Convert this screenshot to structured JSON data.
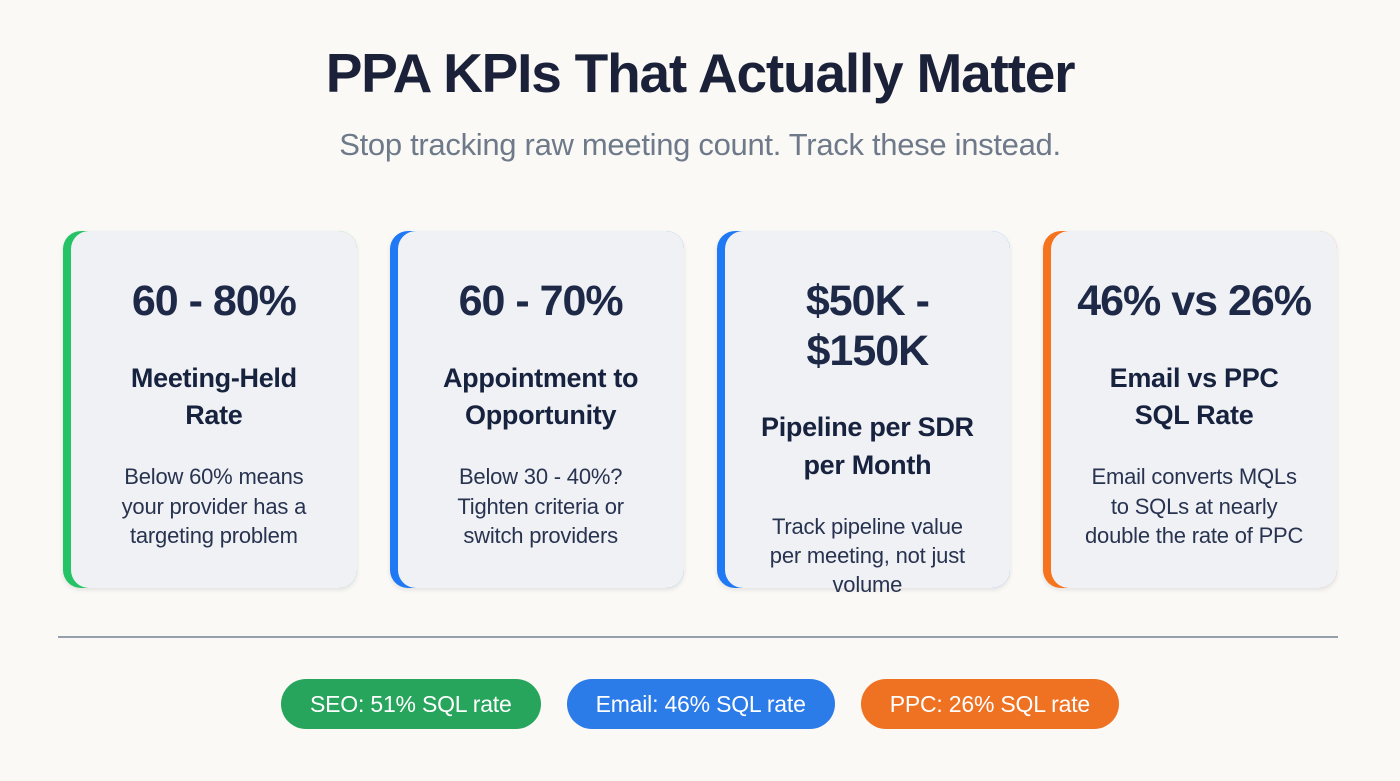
{
  "page": {
    "background": "#FAF9F6",
    "divider_color": "#95A0AC",
    "card_background": "#F0F1F5"
  },
  "header": {
    "title": "PPA KPIs That Actually Matter",
    "subtitle": "Stop tracking raw meeting count. Track these instead."
  },
  "cards": [
    {
      "accent_color": "#25C365",
      "stat": "60 - 80%",
      "title": "Meeting-Held\nRate",
      "description": "Below 60% means\nyour provider has a\ntargeting problem"
    },
    {
      "accent_color": "#2079F4",
      "stat": "60 - 70%",
      "title": "Appointment to\nOpportunity",
      "description": "Below 30 - 40%?\nTighten criteria or\nswitch providers"
    },
    {
      "accent_color": "#2079F4",
      "stat": "$50K - $150K",
      "title": "Pipeline per SDR\nper Month",
      "description": "Track pipeline value\nper meeting, not just\nvolume"
    },
    {
      "accent_color": "#F5731D",
      "stat": "46% vs 26%",
      "title": "Email vs PPC\nSQL Rate",
      "description": "Email converts MQLs\nto SQLs at nearly\ndouble the rate of PPC"
    }
  ],
  "badges": [
    {
      "label": "SEO: 51% SQL rate",
      "color": "#28A55C"
    },
    {
      "label": "Email: 46% SQL rate",
      "color": "#2B7BE9"
    },
    {
      "label": "PPC: 26% SQL rate",
      "color": "#EF7122"
    }
  ],
  "chart_data": {
    "type": "table",
    "title": "PPA KPIs That Actually Matter",
    "subtitle": "Stop tracking raw meeting count. Track these instead.",
    "kpis": [
      {
        "benchmark": "60 - 80%",
        "metric": "Meeting-Held Rate",
        "note": "Below 60% means your provider has a targeting problem"
      },
      {
        "benchmark": "60 - 70%",
        "metric": "Appointment to Opportunity",
        "note": "Below 30 - 40%? Tighten criteria or switch providers"
      },
      {
        "benchmark": "$50K - $150K",
        "metric": "Pipeline per SDR per Month",
        "note": "Track pipeline value per meeting, not just volume"
      },
      {
        "benchmark": "46% vs 26%",
        "metric": "Email vs PPC SQL Rate",
        "note": "Email converts MQLs to SQLs at nearly double the rate of PPC"
      }
    ],
    "sql_rate_by_channel": {
      "categories": [
        "SEO",
        "Email",
        "PPC"
      ],
      "values_percent": [
        51,
        46,
        26
      ],
      "unit": "% SQL rate"
    }
  }
}
